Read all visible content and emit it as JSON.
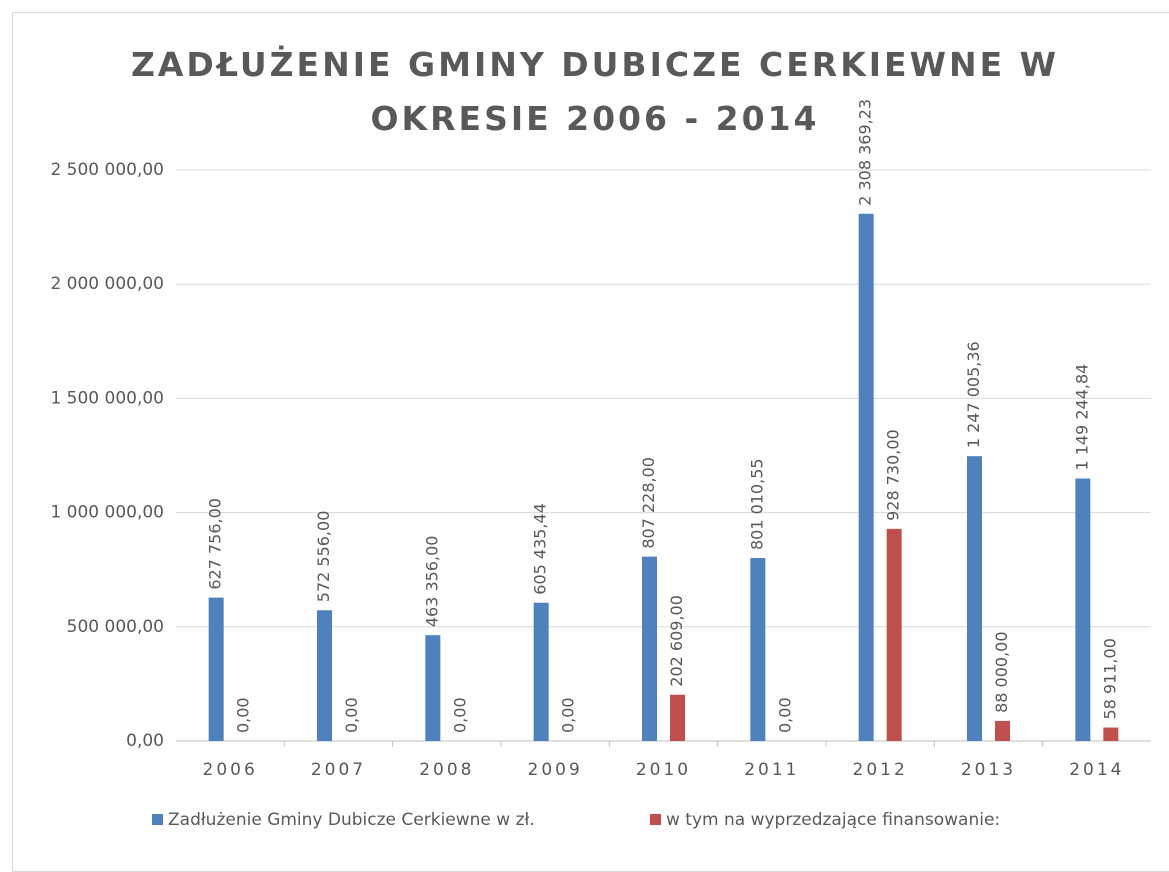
{
  "chart_data": {
    "type": "bar",
    "title": "ZADŁUŻENIE GMINY DUBICZE CERKIEWNE W OKRESIE 2006 - 2014",
    "categories": [
      "2006",
      "2007",
      "2008",
      "2009",
      "2010",
      "2011",
      "2012",
      "2013",
      "2014"
    ],
    "series": [
      {
        "name": "Zadłużenie Gminy Dubicze Cerkiewne w zł.",
        "color": "#4f81bd",
        "values": [
          627756,
          572556,
          463356,
          605435.44,
          807228,
          801010.55,
          2308369.23,
          1247005.36,
          1149244.84
        ],
        "value_labels": [
          "627 756,00",
          "572 556,00",
          "463 356,00",
          "605 435,44",
          "807 228,00",
          "801 010,55",
          "2 308 369,23",
          "1 247 005,36",
          "1 149 244,84"
        ]
      },
      {
        "name": "w tym na wyprzedzające finansowanie:",
        "color": "#c0504d",
        "values": [
          0,
          0,
          0,
          0,
          202609,
          0,
          928730,
          88000,
          58911
        ],
        "value_labels": [
          "0,00",
          "0,00",
          "0,00",
          "0,00",
          "202 609,00",
          "0,00",
          "928 730,00",
          "88 000,00",
          "58 911,00"
        ]
      }
    ],
    "ylim": [
      0,
      2500000
    ],
    "yticks": [
      {
        "value": 0,
        "label": "0,00"
      },
      {
        "value": 500000,
        "label": "500 000,00"
      },
      {
        "value": 1000000,
        "label": "1 000 000,00"
      },
      {
        "value": 1500000,
        "label": "1 500 000,00"
      },
      {
        "value": 2000000,
        "label": "2 000 000,00"
      },
      {
        "value": 2500000,
        "label": "2 500 000,00"
      }
    ],
    "grid": true,
    "legend": "bottom"
  }
}
